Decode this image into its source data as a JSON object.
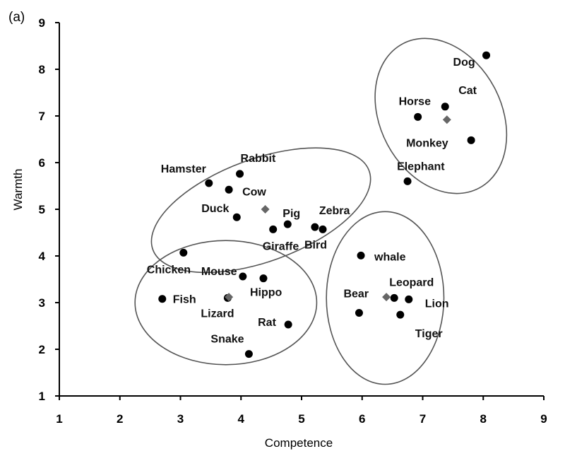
{
  "panel_label": "(a)",
  "chart_data": {
    "type": "scatter",
    "title": "",
    "xlabel": "Competence",
    "ylabel": "Warmth",
    "xlim": [
      1,
      9
    ],
    "ylim": [
      1,
      9
    ],
    "xticks": [
      1,
      2,
      3,
      4,
      5,
      6,
      7,
      8,
      9
    ],
    "yticks": [
      1,
      2,
      3,
      4,
      5,
      6,
      7,
      8,
      9
    ],
    "grid": false,
    "legend": "none",
    "points": [
      {
        "label": "Dog",
        "x": 8.05,
        "y": 8.3
      },
      {
        "label": "Cat",
        "x": 7.37,
        "y": 7.2
      },
      {
        "label": "Horse",
        "x": 6.92,
        "y": 6.98
      },
      {
        "label": "Monkey",
        "x": 7.8,
        "y": 6.48
      },
      {
        "label": "Elephant",
        "x": 6.75,
        "y": 5.6
      },
      {
        "label": "Rabbit",
        "x": 3.98,
        "y": 5.76
      },
      {
        "label": "Hamster",
        "x": 3.47,
        "y": 5.56
      },
      {
        "label": "Cow",
        "x": 3.8,
        "y": 5.42
      },
      {
        "label": "Duck",
        "x": 3.93,
        "y": 4.83
      },
      {
        "label": "Pig",
        "x": 4.77,
        "y": 4.68
      },
      {
        "label": "Giraffe",
        "x": 4.53,
        "y": 4.57
      },
      {
        "label": "Zebra",
        "x": 5.22,
        "y": 4.62
      },
      {
        "label": "Bird",
        "x": 5.35,
        "y": 4.57
      },
      {
        "label": "Chicken",
        "x": 3.05,
        "y": 4.07
      },
      {
        "label": "Mouse",
        "x": 4.03,
        "y": 3.56
      },
      {
        "label": "Hippo",
        "x": 4.37,
        "y": 3.52
      },
      {
        "label": "Fish",
        "x": 2.7,
        "y": 3.08
      },
      {
        "label": "Lizard",
        "x": 3.78,
        "y": 3.1
      },
      {
        "label": "Rat",
        "x": 4.78,
        "y": 2.53
      },
      {
        "label": "Snake",
        "x": 4.13,
        "y": 1.9
      },
      {
        "label": "whale",
        "x": 5.98,
        "y": 4.01
      },
      {
        "label": "Bear",
        "x": 5.95,
        "y": 2.78
      },
      {
        "label": "Leopard",
        "x": 6.53,
        "y": 3.1
      },
      {
        "label": "Lion",
        "x": 6.77,
        "y": 3.07
      },
      {
        "label": "Tiger",
        "x": 6.63,
        "y": 2.74
      }
    ],
    "cluster_centers": [
      {
        "x": 7.4,
        "y": 6.92
      },
      {
        "x": 4.4,
        "y": 5.0
      },
      {
        "x": 3.8,
        "y": 3.12
      },
      {
        "x": 6.4,
        "y": 3.12
      }
    ],
    "cluster_ellipses": [
      {
        "cx": 7.3,
        "cy": 7.0,
        "rx": 1.0,
        "ry": 1.75,
        "rotate": 28
      },
      {
        "cx": 4.33,
        "cy": 4.98,
        "rx": 1.9,
        "ry": 1.1,
        "rotate": 20
      },
      {
        "cx": 3.75,
        "cy": 3.0,
        "rx": 1.5,
        "ry": 1.33,
        "rotate": 0
      },
      {
        "cx": 6.38,
        "cy": 3.1,
        "rx": 0.97,
        "ry": 1.85,
        "rotate": 0
      }
    ],
    "colors": {
      "point": "#000000",
      "center": "#666666",
      "ellipse": "#555555"
    }
  }
}
